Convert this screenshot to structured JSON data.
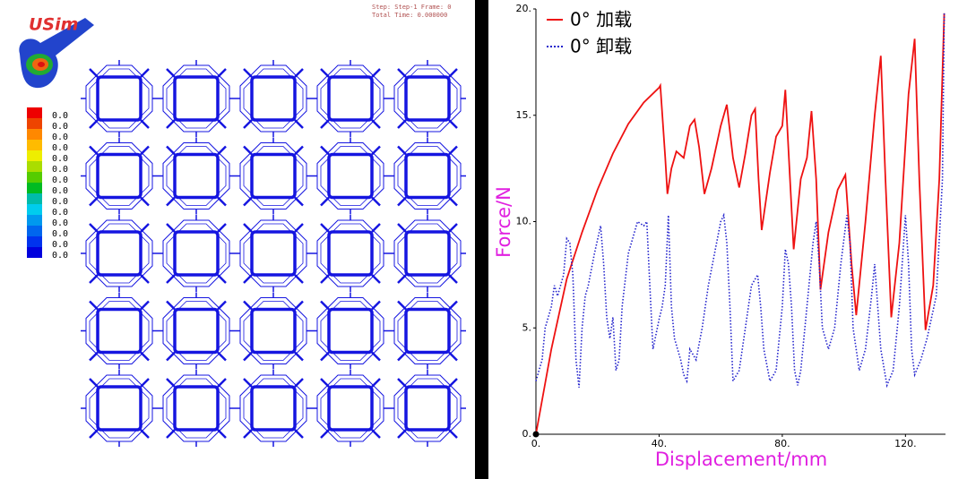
{
  "viewer": {
    "logo": "USim",
    "step_line": "Step: Step-1   Frame: 0",
    "time_line": "Total Time: 0.000000",
    "colorbar_labels": [
      "0.0",
      "0.0",
      "0.0",
      "0.0",
      "0.0",
      "0.0",
      "0.0",
      "0.0",
      "0.0",
      "0.0",
      "0.0",
      "0.0",
      "0.0",
      "0.0"
    ]
  },
  "chart_data": {
    "type": "line",
    "x_label": "Displacement/mm",
    "y_label": "Force/N",
    "xlim": [
      0,
      133
    ],
    "ylim": [
      0,
      20
    ],
    "xticks": [
      {
        "value": 0,
        "label": "0."
      },
      {
        "value": 40,
        "label": "40."
      },
      {
        "value": 80,
        "label": "80."
      },
      {
        "value": 120,
        "label": "120."
      }
    ],
    "yticks": [
      {
        "value": 0,
        "label": "0."
      },
      {
        "value": 5,
        "label": "5."
      },
      {
        "value": 10,
        "label": "10."
      },
      {
        "value": 15,
        "label": "15."
      },
      {
        "value": 20,
        "label": "20."
      }
    ],
    "legend": "upper left",
    "series": [
      {
        "name": "0° 加载",
        "color": "#ee1111",
        "dash": "solid",
        "x": [
          0,
          5,
          10,
          15,
          20,
          25,
          30,
          35,
          40,
          40.4,
          42,
          42.7,
          44,
          45.6,
          48,
          50,
          51.5,
          53,
          54.7,
          57,
          60,
          62,
          64,
          66,
          68,
          70,
          71.2,
          72.3,
          73.3,
          76,
          78,
          80,
          81,
          82.5,
          83.7,
          86,
          88,
          89.5,
          91,
          92.4,
          95,
          98,
          100.5,
          102.5,
          104,
          107,
          110,
          112,
          113.5,
          115.4,
          118,
          121,
          123,
          124.5,
          126.5,
          129,
          131,
          132.6
        ],
        "values": [
          0,
          4,
          7.3,
          9.5,
          11.5,
          13.2,
          14.6,
          15.6,
          16.3,
          16.4,
          13,
          11.3,
          12.5,
          13.3,
          13,
          14.5,
          14.8,
          13.5,
          11.3,
          12.5,
          14.5,
          15.5,
          13,
          11.6,
          13.2,
          15,
          15.3,
          12,
          9.6,
          12.3,
          14,
          14.5,
          16.2,
          12,
          8.7,
          12,
          13,
          15.2,
          12,
          6.8,
          9.5,
          11.5,
          12.2,
          8,
          5.6,
          10,
          15,
          17.8,
          12,
          5.5,
          9,
          16,
          18.6,
          12,
          4.9,
          7,
          12,
          19.8
        ]
      },
      {
        "name": "0° 卸载",
        "color": "#2222cc",
        "dash": "dotted",
        "x": [
          0,
          1,
          2,
          3,
          5,
          6,
          7,
          9,
          10,
          11,
          12,
          13,
          14,
          15,
          16,
          17,
          19,
          21,
          22,
          23,
          24,
          25,
          26,
          27,
          28,
          30,
          33,
          35,
          36,
          37,
          38,
          40,
          41,
          42,
          43,
          44,
          45,
          47,
          48,
          49,
          50,
          52,
          54,
          56,
          58,
          60,
          61,
          62,
          63,
          64,
          66,
          68,
          70,
          72,
          73,
          74,
          76,
          78,
          80,
          81,
          82,
          83,
          84,
          85,
          86,
          88,
          90,
          91,
          92,
          93,
          95,
          97,
          99,
          101,
          102,
          103,
          105,
          107,
          109,
          110,
          111,
          112,
          114,
          116,
          118,
          120,
          121,
          122,
          123,
          125,
          127,
          130,
          132,
          132.6
        ],
        "values": [
          2.5,
          3,
          3.5,
          5,
          6,
          7,
          6.5,
          7.5,
          9.2,
          9,
          7.5,
          3.5,
          2.2,
          5,
          6.5,
          7,
          8.5,
          9.8,
          8,
          5.5,
          4.5,
          5.5,
          3,
          3.5,
          6,
          8.5,
          10,
          9.8,
          10,
          7,
          4,
          5.4,
          6,
          7,
          10.3,
          6,
          4.5,
          3.5,
          2.8,
          2.5,
          4,
          3.5,
          5,
          7,
          8.5,
          10,
          10.3,
          9,
          6,
          2.5,
          3,
          5,
          7,
          7.5,
          6,
          4,
          2.5,
          3,
          6,
          8.7,
          8,
          6,
          3,
          2.3,
          3,
          6,
          9,
          10,
          8,
          5,
          4,
          5,
          8,
          10.3,
          9,
          5,
          3,
          4,
          6.5,
          8,
          6,
          4,
          2.3,
          3,
          6,
          10.3,
          8,
          4,
          2.8,
          3.5,
          4.5,
          6.5,
          12,
          19.8
        ]
      }
    ]
  }
}
